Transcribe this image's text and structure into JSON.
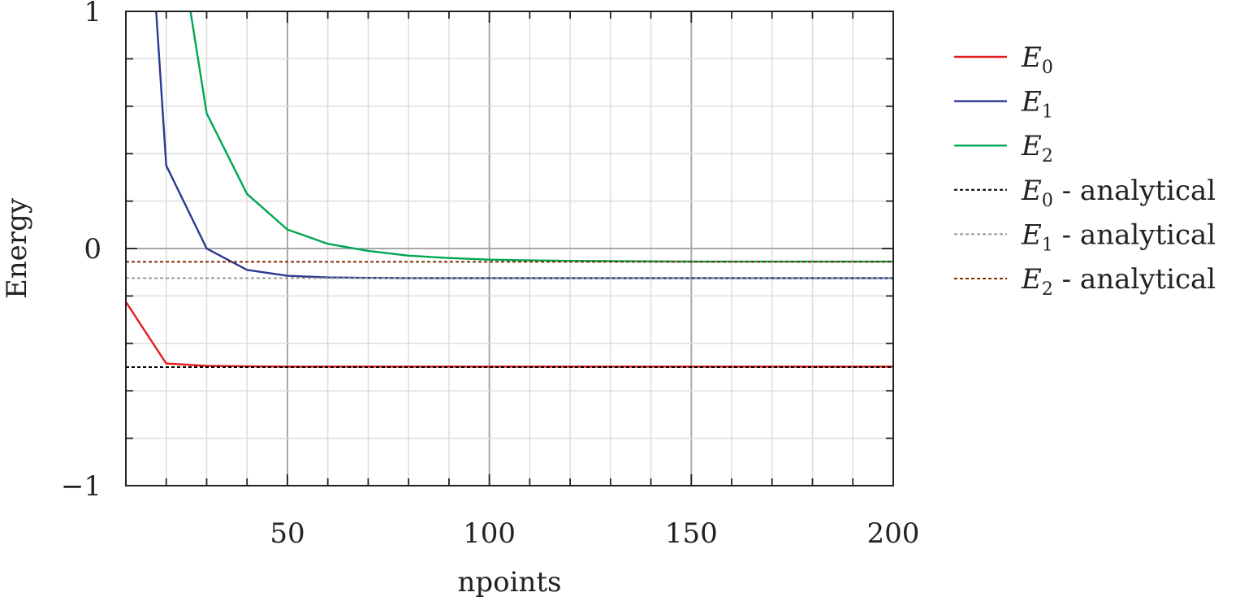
{
  "chart_data": {
    "type": "line",
    "xlabel": "npoints",
    "ylabel": "Energy",
    "xlim": [
      10,
      200
    ],
    "ylim": [
      -1,
      1
    ],
    "x_ticks": [
      50,
      100,
      150,
      200
    ],
    "x_tick_labels": [
      "50",
      "100",
      "150",
      "200"
    ],
    "y_ticks": [
      -1,
      0,
      1
    ],
    "y_tick_labels": [
      "−1",
      "0",
      "1"
    ],
    "x_minor_step": 10,
    "y_minor_step": 0.2,
    "grid": true,
    "legend_position": "outside-right",
    "series": [
      {
        "name": "E",
        "subscript": "0",
        "suffix": "",
        "style": "solid",
        "color": "#e41a1c",
        "x": [
          10,
          20,
          30,
          40,
          50,
          60,
          70,
          80,
          90,
          100,
          110,
          120,
          130,
          140,
          150,
          160,
          170,
          180,
          190,
          200
        ],
        "y": [
          -0.225,
          -0.485,
          -0.495,
          -0.497,
          -0.498,
          -0.498,
          -0.498,
          -0.498,
          -0.498,
          -0.498,
          -0.498,
          -0.498,
          -0.498,
          -0.498,
          -0.498,
          -0.498,
          -0.498,
          -0.498,
          -0.498,
          -0.498
        ]
      },
      {
        "name": "E",
        "subscript": "1",
        "suffix": "",
        "style": "solid",
        "color": "#2b3990",
        "x": [
          17.5,
          20,
          30,
          40,
          50,
          60,
          70,
          80,
          90,
          100,
          110,
          120,
          130,
          140,
          150,
          160,
          170,
          180,
          190,
          200
        ],
        "y": [
          1.0,
          0.35,
          0.0,
          -0.09,
          -0.115,
          -0.122,
          -0.124,
          -0.125,
          -0.125,
          -0.125,
          -0.125,
          -0.125,
          -0.125,
          -0.125,
          -0.125,
          -0.125,
          -0.125,
          -0.125,
          -0.125,
          -0.125
        ]
      },
      {
        "name": "E",
        "subscript": "2",
        "suffix": "",
        "style": "solid",
        "color": "#00a651",
        "x": [
          26,
          30,
          40,
          50,
          60,
          70,
          80,
          90,
          100,
          110,
          120,
          130,
          140,
          150,
          160,
          170,
          180,
          190,
          200
        ],
        "y": [
          1.0,
          0.57,
          0.23,
          0.08,
          0.02,
          -0.01,
          -0.03,
          -0.04,
          -0.047,
          -0.05,
          -0.052,
          -0.053,
          -0.054,
          -0.055,
          -0.055,
          -0.055,
          -0.055,
          -0.055,
          -0.055
        ]
      },
      {
        "name": "E",
        "subscript": "0",
        "suffix": " - analytical",
        "style": "dotted",
        "color": "#000000",
        "x": [
          10,
          200
        ],
        "y": [
          -0.5,
          -0.5
        ]
      },
      {
        "name": "E",
        "subscript": "1",
        "suffix": " - analytical",
        "style": "dotted",
        "color": "#999999",
        "x": [
          10,
          200
        ],
        "y": [
          -0.125,
          -0.125
        ]
      },
      {
        "name": "E",
        "subscript": "2",
        "suffix": " - analytical",
        "style": "dotted",
        "color": "#7b2f00",
        "x": [
          10,
          200
        ],
        "y": [
          -0.056,
          -0.056
        ]
      }
    ]
  }
}
